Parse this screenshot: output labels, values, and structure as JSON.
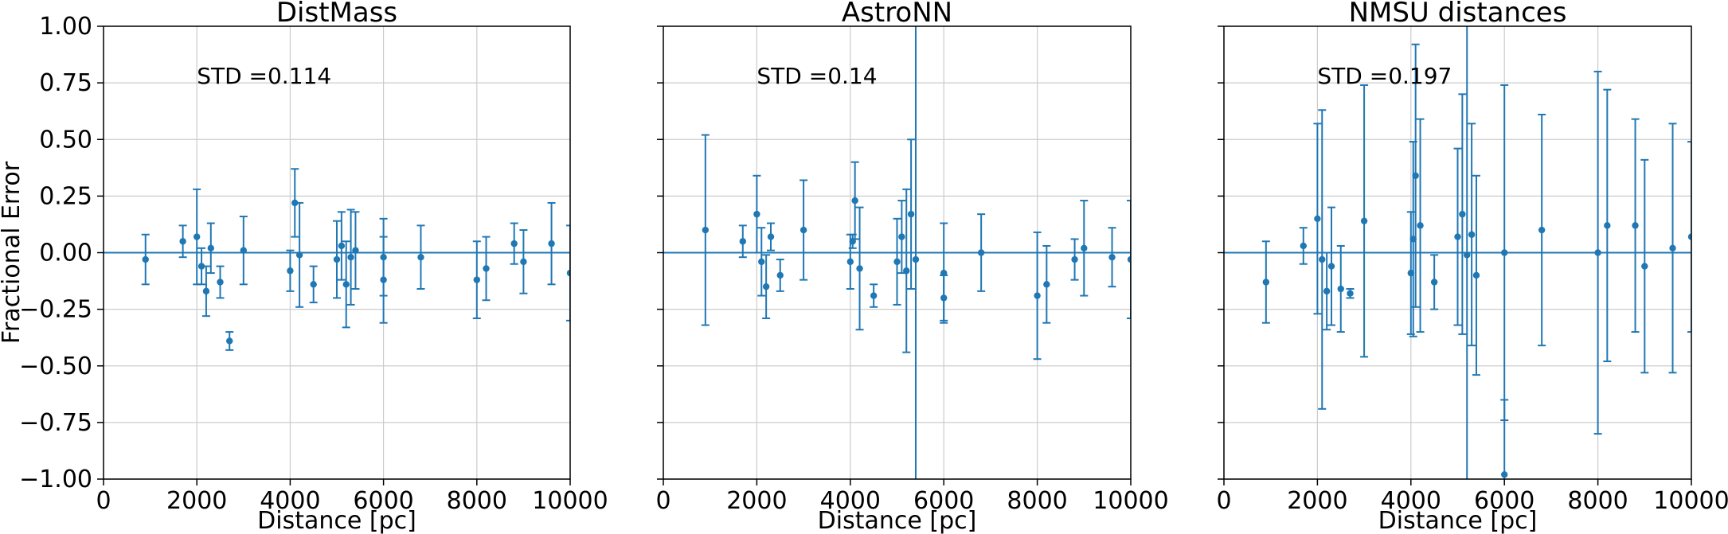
{
  "chart_data": [
    {
      "type": "scatter",
      "title": "DistMass",
      "xlabel": "Distance [pc]",
      "ylabel": "Fractional Error",
      "annotation": "STD =0.114",
      "xlim": [
        0,
        10000
      ],
      "ylim": [
        -1.0,
        1.0
      ],
      "xticks": [
        "0",
        "2000",
        "4000",
        "6000",
        "8000",
        "10000"
      ],
      "yticks": [
        "1.00",
        "0.75",
        "0.50",
        "0.25",
        "0.00",
        "−0.25",
        "−0.50",
        "−0.75",
        "−1.00"
      ],
      "grid": true,
      "reference_line": 0,
      "series": [
        {
          "x": [
            900,
            1700,
            2000,
            2100,
            2200,
            2300,
            2500,
            2700,
            3000,
            4000,
            4100,
            4200,
            4500,
            5000,
            5100,
            5200,
            5300,
            5400,
            6000,
            6000,
            6800,
            8000,
            8200,
            8800,
            9000,
            9600,
            10000
          ],
          "y": [
            -0.03,
            0.05,
            0.07,
            -0.06,
            -0.17,
            0.02,
            -0.13,
            -0.39,
            0.01,
            -0.08,
            0.22,
            -0.01,
            -0.14,
            -0.03,
            0.03,
            -0.14,
            -0.02,
            0.01,
            -0.02,
            -0.12,
            -0.02,
            -0.12,
            -0.07,
            0.04,
            -0.04,
            0.04,
            -0.09
          ],
          "err": [
            0.11,
            0.07,
            0.21,
            0.08,
            0.11,
            0.11,
            0.07,
            0.04,
            0.15,
            0.09,
            0.15,
            0.23,
            0.08,
            0.17,
            0.15,
            0.19,
            0.21,
            0.17,
            0.17,
            0.19,
            0.14,
            0.17,
            0.14,
            0.09,
            0.14,
            0.18,
            0.21
          ]
        }
      ]
    },
    {
      "type": "scatter",
      "title": "AstroNN",
      "xlabel": "Distance [pc]",
      "annotation": "STD =0.14",
      "xlim": [
        0,
        10000
      ],
      "ylim": [
        -1.0,
        1.0
      ],
      "xticks": [
        "0",
        "2000",
        "4000",
        "6000",
        "8000",
        "10000"
      ],
      "grid": true,
      "reference_line": 0,
      "series": [
        {
          "x": [
            900,
            1700,
            2000,
            2100,
            2200,
            2300,
            2500,
            3000,
            4000,
            4050,
            4100,
            4200,
            4500,
            5000,
            5100,
            5200,
            5300,
            5400,
            6000,
            6000,
            6800,
            8000,
            8200,
            8800,
            9000,
            9600,
            10000
          ],
          "y": [
            0.1,
            0.05,
            0.17,
            -0.04,
            -0.15,
            0.07,
            -0.1,
            0.1,
            -0.04,
            0.05,
            0.23,
            -0.07,
            -0.19,
            -0.04,
            0.07,
            -0.08,
            0.17,
            -0.03,
            -0.09,
            -0.2,
            0.0,
            -0.19,
            -0.14,
            -0.03,
            0.02,
            -0.02,
            -0.03
          ],
          "err": [
            0.42,
            0.07,
            0.17,
            0.15,
            0.14,
            0.06,
            0.07,
            0.22,
            0.12,
            0.03,
            0.17,
            0.27,
            0.05,
            0.19,
            0.16,
            0.36,
            0.33,
            1.1,
            0.22,
            0.1,
            0.17,
            0.28,
            0.17,
            0.09,
            0.21,
            0.13,
            0.26
          ]
        }
      ]
    },
    {
      "type": "scatter",
      "title": "NMSU distances",
      "xlabel": "Distance [pc]",
      "annotation": "STD =0.197",
      "xlim": [
        0,
        10000
      ],
      "ylim": [
        -1.0,
        1.0
      ],
      "xticks": [
        "0",
        "2000",
        "4000",
        "6000",
        "8000",
        "10000"
      ],
      "grid": true,
      "reference_line": 0,
      "series": [
        {
          "x": [
            900,
            1700,
            2000,
            2100,
            2200,
            2300,
            2500,
            2700,
            3000,
            4000,
            4050,
            4100,
            4200,
            4500,
            5000,
            5100,
            5200,
            5300,
            5400,
            6000,
            6000,
            6800,
            8000,
            8200,
            8800,
            9000,
            9600,
            10000
          ],
          "y": [
            -0.13,
            0.03,
            0.15,
            -0.03,
            -0.17,
            -0.06,
            -0.16,
            -0.18,
            0.14,
            -0.09,
            0.06,
            0.34,
            0.12,
            -0.13,
            0.07,
            0.17,
            -0.01,
            0.08,
            -0.1,
            0.0,
            -0.98,
            0.1,
            0.0,
            0.12,
            0.12,
            -0.06,
            0.02,
            0.07
          ],
          "err": [
            0.18,
            0.08,
            0.42,
            0.66,
            0.17,
            0.26,
            0.19,
            0.02,
            0.6,
            0.27,
            0.43,
            0.58,
            0.47,
            0.12,
            0.39,
            0.53,
            1.2,
            0.49,
            0.44,
            0.74,
            0.33,
            0.51,
            0.8,
            0.6,
            0.47,
            0.47,
            0.55,
            0.42
          ]
        }
      ]
    }
  ]
}
